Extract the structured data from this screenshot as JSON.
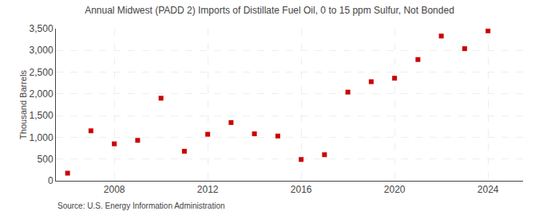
{
  "chart_data": {
    "type": "scatter",
    "title": "Annual Midwest (PADD 2) Imports of Distillate Fuel Oil, 0 to 15 ppm Sulfur, Not Bonded",
    "ylabel": "Thousand Barrels",
    "annotations": [
      "Source: U.S. Energy Information Administration"
    ],
    "x": [
      2006,
      2007,
      2008,
      2009,
      2010,
      2011,
      2012,
      2013,
      2014,
      2015,
      2016,
      2017,
      2018,
      2019,
      2020,
      2021,
      2022,
      2023,
      2024
    ],
    "values": [
      175,
      1150,
      850,
      930,
      1900,
      680,
      1070,
      1340,
      1080,
      1030,
      490,
      600,
      2040,
      2280,
      2360,
      2790,
      3330,
      3040,
      3450
    ],
    "color": "#cc0000",
    "marker": "square",
    "xlim": [
      2005.5,
      2025.5
    ],
    "xticks": [
      2008,
      2012,
      2016,
      2020,
      2024
    ],
    "ylim": [
      0,
      3500
    ],
    "yticks": [
      0,
      500,
      {
        "value": 1000,
        "label": "1,000"
      },
      {
        "value": 1500,
        "label": "1,500"
      },
      {
        "value": 2000,
        "label": "2,000"
      },
      {
        "value": 2500,
        "label": "2,500"
      },
      {
        "value": 3000,
        "label": "3,000"
      },
      {
        "value": 3500,
        "label": "3,500"
      }
    ],
    "grid": true
  }
}
